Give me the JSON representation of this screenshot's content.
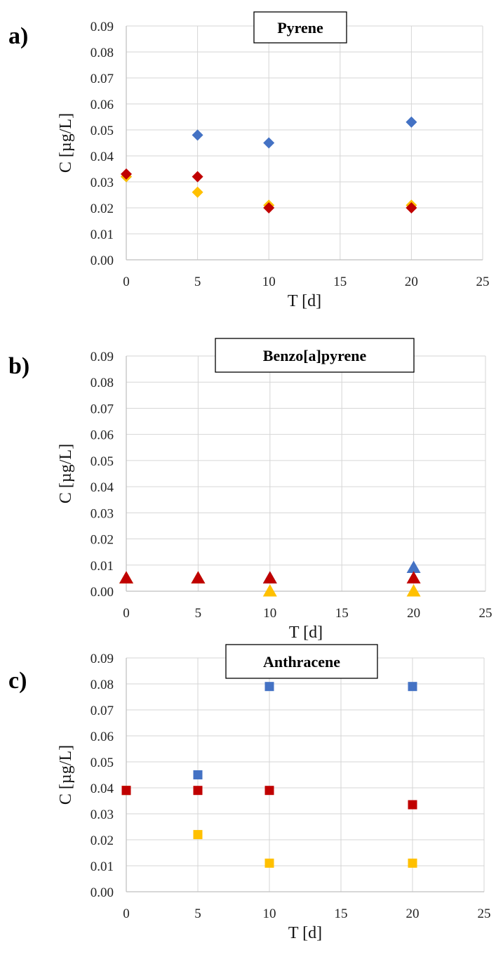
{
  "colors": {
    "blue": "#4472C4",
    "red": "#C00000",
    "yellow": "#FFC000",
    "grid": "#d6d6d6"
  },
  "chart_data": [
    {
      "panel_label": "a)",
      "type": "scatter",
      "title": "Pyrene",
      "xlabel": "T [d]",
      "ylabel": "C [µg/L]",
      "xlim": [
        0,
        25
      ],
      "ylim": [
        0,
        0.09
      ],
      "x_ticks": [
        "0",
        "5",
        "10",
        "15",
        "20",
        "25"
      ],
      "y_ticks": [
        "0.00",
        "0.01",
        "0.02",
        "0.03",
        "0.04",
        "0.05",
        "0.06",
        "0.07",
        "0.08",
        "0.09"
      ],
      "grid": true,
      "marker": "diamond",
      "series": [
        {
          "color": "#4472C4",
          "x": [
            0,
            5,
            10,
            20
          ],
          "y": [
            0.032,
            0.048,
            0.045,
            0.053
          ]
        },
        {
          "color": "#FFC000",
          "x": [
            0,
            5,
            10,
            20
          ],
          "y": [
            0.032,
            0.026,
            0.021,
            0.021
          ]
        },
        {
          "color": "#C00000",
          "x": [
            0,
            5,
            10,
            20
          ],
          "y": [
            0.033,
            0.032,
            0.02,
            0.02
          ]
        }
      ]
    },
    {
      "panel_label": "b)",
      "type": "scatter",
      "title": "Benzo[a]pyrene",
      "xlabel": "T [d]",
      "ylabel": "C [µg/L]",
      "xlim": [
        0,
        25
      ],
      "ylim": [
        0,
        0.09
      ],
      "x_ticks": [
        "0",
        "5",
        "10",
        "15",
        "20",
        "25"
      ],
      "y_ticks": [
        "0.00",
        "0.01",
        "0.02",
        "0.03",
        "0.04",
        "0.05",
        "0.06",
        "0.07",
        "0.08",
        "0.09"
      ],
      "grid": true,
      "marker": "triangle",
      "series": [
        {
          "color": "#4472C4",
          "x": [
            0,
            5,
            10,
            20
          ],
          "y": [
            0.005,
            0.005,
            0.005,
            0.009
          ]
        },
        {
          "color": "#FFC000",
          "x": [
            0,
            5,
            10,
            20
          ],
          "y": [
            0.005,
            0.005,
            0.0,
            0.0
          ]
        },
        {
          "color": "#C00000",
          "x": [
            0,
            5,
            10,
            20
          ],
          "y": [
            0.005,
            0.005,
            0.005,
            0.005
          ]
        }
      ]
    },
    {
      "panel_label": "c)",
      "type": "scatter",
      "title": "Anthracene",
      "xlabel": "T [d]",
      "ylabel": "C [µg/L]",
      "xlim": [
        0,
        25
      ],
      "ylim": [
        0,
        0.09
      ],
      "x_ticks": [
        "0",
        "5",
        "10",
        "15",
        "20",
        "25"
      ],
      "y_ticks": [
        "0.00",
        "0.01",
        "0.02",
        "0.03",
        "0.04",
        "0.05",
        "0.06",
        "0.07",
        "0.08",
        "0.09"
      ],
      "grid": true,
      "marker": "square",
      "series": [
        {
          "color": "#4472C4",
          "x": [
            0,
            5,
            10,
            20
          ],
          "y": [
            0.039,
            0.045,
            0.079,
            0.079
          ]
        },
        {
          "color": "#FFC000",
          "x": [
            0,
            5,
            10,
            20
          ],
          "y": [
            0.039,
            0.022,
            0.011,
            0.011
          ]
        },
        {
          "color": "#C00000",
          "x": [
            0,
            5,
            10,
            20
          ],
          "y": [
            0.039,
            0.039,
            0.039,
            0.0335
          ]
        }
      ]
    }
  ]
}
